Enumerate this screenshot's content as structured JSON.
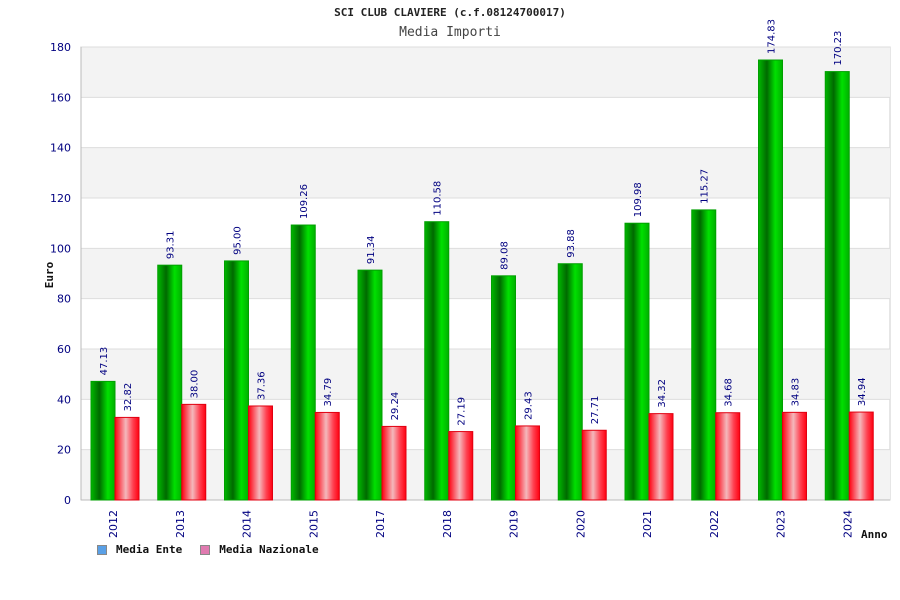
{
  "chart_data": {
    "type": "bar",
    "title": "SCI CLUB CLAVIERE (c.f.08124700017)",
    "subtitle": "Media Importi",
    "xlabel": "Anno",
    "ylabel": "Euro",
    "ylim": [
      0,
      180
    ],
    "yticks": [
      "0",
      "20",
      "40",
      "60",
      "80",
      "100",
      "120",
      "140",
      "160",
      "180"
    ],
    "grid": "horizontal bands",
    "legend_position": "bottom-left",
    "categories": [
      "2012",
      "2013",
      "2014",
      "2015",
      "2017",
      "2018",
      "2019",
      "2020",
      "2021",
      "2022",
      "2023",
      "2024"
    ],
    "series": [
      {
        "name": "Media Ente",
        "color": "#00c000",
        "legend_color": "#5aa0e6",
        "values": [
          47.13,
          93.31,
          95.0,
          109.26,
          91.34,
          110.58,
          89.08,
          93.88,
          109.98,
          115.27,
          174.83,
          170.23
        ],
        "labels": [
          "47.13",
          "93.31",
          "95.00",
          "109.26",
          "91.34",
          "110.58",
          "89.08",
          "93.88",
          "109.98",
          "115.27",
          "174.83",
          "170.23"
        ]
      },
      {
        "name": "Media Nazionale",
        "color": "#ff1020",
        "legend_color": "#e07ab0",
        "values": [
          32.82,
          38.0,
          37.36,
          34.79,
          29.24,
          27.19,
          29.43,
          27.71,
          34.32,
          34.68,
          34.83,
          34.94
        ],
        "labels": [
          "32.82",
          "38.00",
          "37.36",
          "34.79",
          "29.24",
          "27.19",
          "29.43",
          "27.71",
          "34.32",
          "34.68",
          "34.83",
          "34.94"
        ]
      }
    ]
  }
}
